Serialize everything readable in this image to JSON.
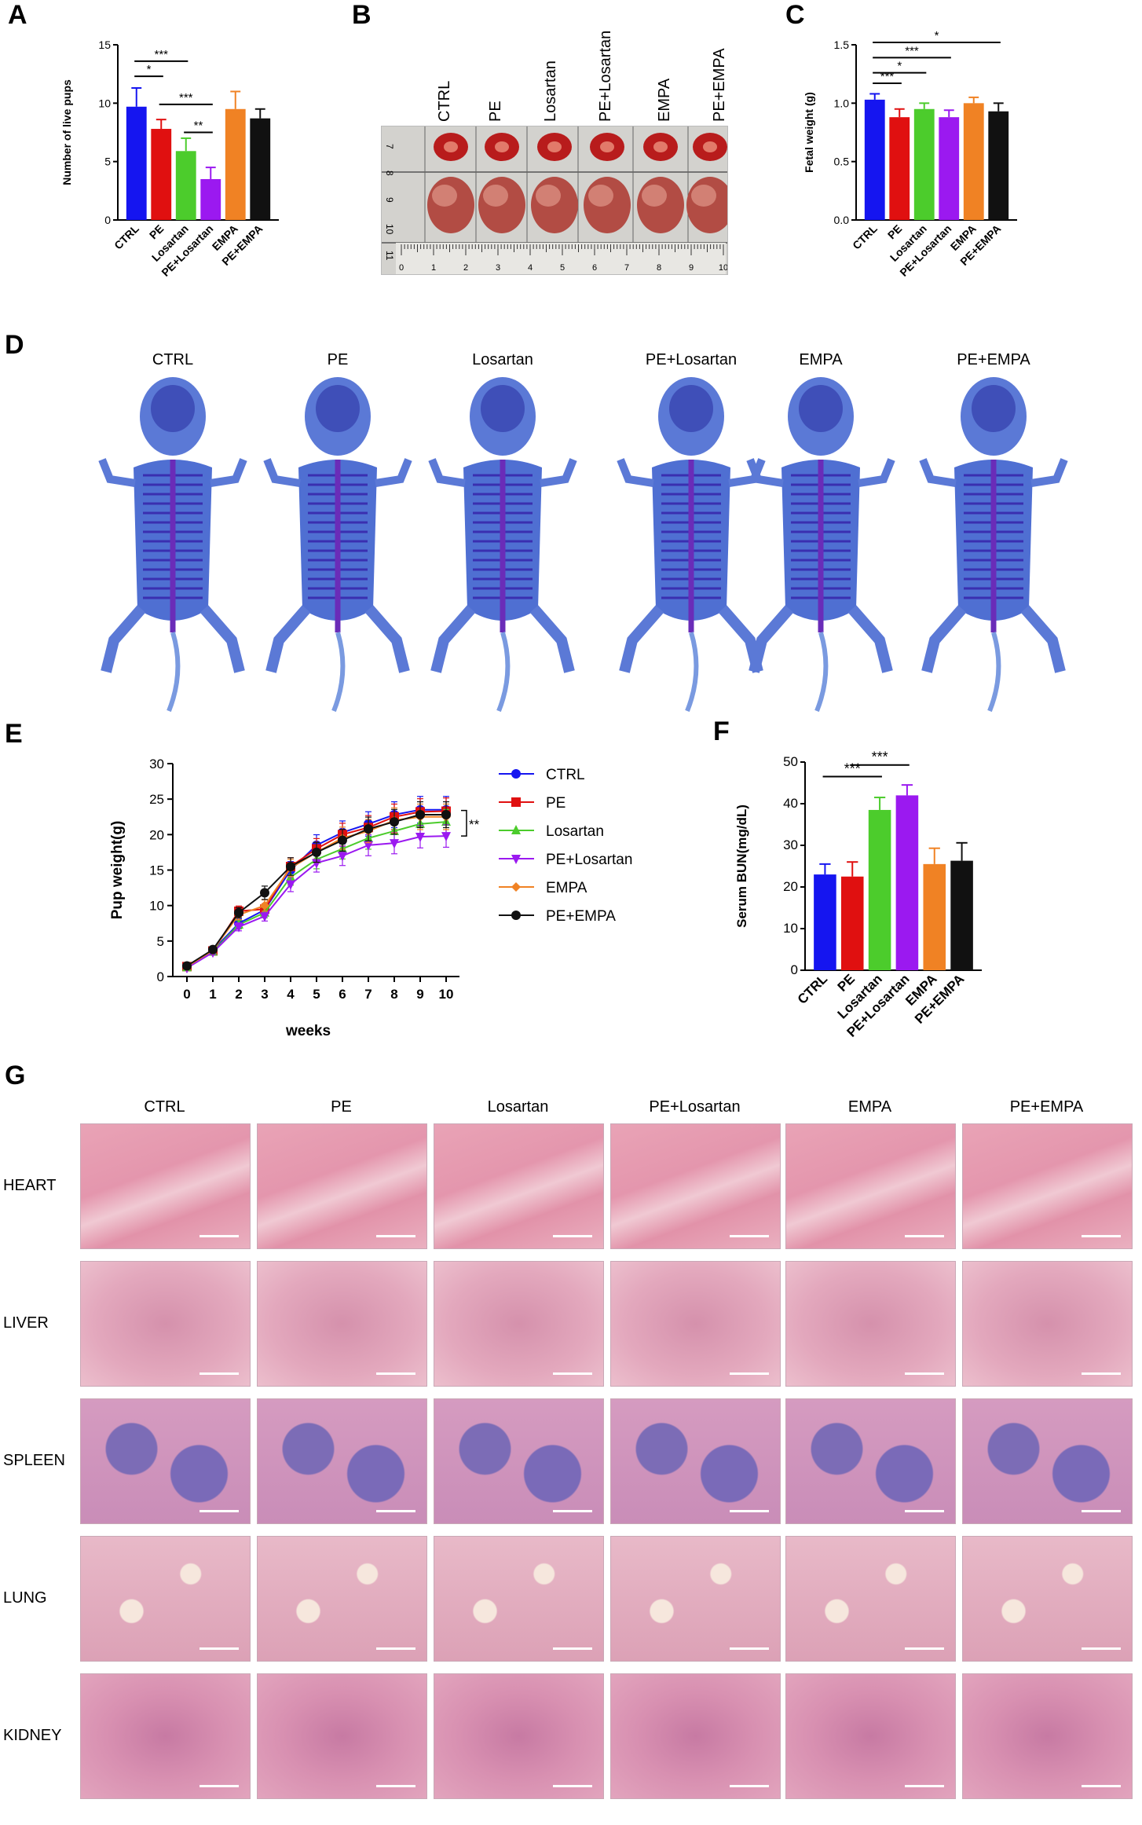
{
  "panels": {
    "A": "A",
    "B": "B",
    "C": "C",
    "D": "D",
    "E": "E",
    "F": "F",
    "G": "G"
  },
  "colors": {
    "CTRL": "#1515f0",
    "PE": "#e01010",
    "Losartan": "#4ccc2c",
    "PE+Losartan": "#9b19f0",
    "EMPA": "#f08224",
    "PE+EMPA": "#111111"
  },
  "groups": [
    "CTRL",
    "PE",
    "Losartan",
    "PE+Losartan",
    "EMPA",
    "PE+EMPA"
  ],
  "panel_b": {
    "headers": [
      "CTRL",
      "PE",
      "Losartan",
      "PE+Losartan",
      "EMPA",
      "PE+EMPA"
    ],
    "ruler_left": [
      "7",
      "8",
      "9",
      "10",
      "11"
    ],
    "ruler_bottom": [
      "0",
      "1",
      "2",
      "3",
      "4",
      "5",
      "6",
      "7",
      "8",
      "9",
      "10"
    ]
  },
  "panel_d": {
    "headers": [
      "CTRL",
      "PE",
      "Losartan",
      "PE+Losartan",
      "EMPA",
      "PE+EMPA"
    ]
  },
  "panel_g": {
    "columns": [
      "CTRL",
      "PE",
      "Losartan",
      "PE+Losartan",
      "EMPA",
      "PE+EMPA"
    ],
    "rows": [
      "HEART",
      "LIVER",
      "SPLEEN",
      "LUNG",
      "KIDNEY"
    ]
  },
  "chart_data": [
    {
      "panel": "A",
      "type": "bar",
      "ylabel": "Number of live pups",
      "categories": [
        "CTRL",
        "PE",
        "Losartan",
        "PE+Losartan",
        "EMPA",
        "PE+EMPA"
      ],
      "values": [
        9.7,
        7.8,
        5.9,
        3.5,
        9.5,
        8.7
      ],
      "errors": [
        1.6,
        0.8,
        1.1,
        1.0,
        1.5,
        0.8
      ],
      "ylim": [
        0,
        15
      ],
      "yticks": [
        "0",
        "5",
        "10",
        "15"
      ],
      "significance": [
        "***",
        "*",
        "***",
        "**"
      ]
    },
    {
      "panel": "C",
      "type": "bar",
      "ylabel": "Fetal weight (g)",
      "categories": [
        "CTRL",
        "PE",
        "Losartan",
        "PE+Losartan",
        "EMPA",
        "PE+EMPA"
      ],
      "values": [
        1.03,
        0.88,
        0.95,
        0.88,
        1.0,
        0.93
      ],
      "errors": [
        0.05,
        0.07,
        0.05,
        0.06,
        0.05,
        0.07
      ],
      "ylim": [
        0,
        1.5
      ],
      "yticks": [
        "0.0",
        "0.5",
        "1.0",
        "1.5"
      ],
      "significance": [
        "*",
        "***",
        "*",
        "***"
      ]
    },
    {
      "panel": "E",
      "type": "line",
      "ylabel": "Pup weight(g)",
      "xlabel": "weeks",
      "x": [
        0,
        1,
        2,
        3,
        4,
        5,
        6,
        7,
        8,
        9,
        10
      ],
      "ylim": [
        0,
        30
      ],
      "yticks": [
        "0",
        "5",
        "10",
        "15",
        "20",
        "25",
        "30"
      ],
      "series": [
        {
          "name": "CTRL",
          "values": [
            1.4,
            3.7,
            7.5,
            9.4,
            15.0,
            18.5,
            20.3,
            21.5,
            22.8,
            23.5,
            23.5
          ],
          "marker": "circle"
        },
        {
          "name": "PE",
          "values": [
            1.4,
            3.6,
            9.2,
            9.5,
            15.5,
            18.0,
            20.0,
            21.0,
            22.5,
            23.2,
            23.3
          ],
          "marker": "square"
        },
        {
          "name": "Losartan",
          "values": [
            1.3,
            3.5,
            7.3,
            9.0,
            14.0,
            16.5,
            18.0,
            19.5,
            20.5,
            21.5,
            21.8
          ],
          "marker": "triangle"
        },
        {
          "name": "PE+Losartan",
          "values": [
            1.2,
            3.4,
            7.0,
            8.5,
            13.0,
            16.0,
            17.0,
            18.5,
            18.8,
            19.7,
            19.8
          ],
          "marker": "triangle-down"
        },
        {
          "name": "EMPA",
          "values": [
            1.4,
            3.7,
            8.7,
            10.0,
            15.3,
            17.5,
            19.5,
            20.5,
            22.0,
            22.5,
            22.5
          ],
          "marker": "diamond"
        },
        {
          "name": "PE+EMPA",
          "values": [
            1.5,
            3.8,
            9.0,
            11.8,
            15.5,
            17.5,
            19.2,
            20.8,
            21.8,
            22.8,
            22.8
          ],
          "marker": "circle"
        }
      ],
      "significance": "**"
    },
    {
      "panel": "F",
      "type": "bar",
      "ylabel": "Serum BUN(mg/dL)",
      "categories": [
        "CTRL",
        "PE",
        "Losartan",
        "PE+Losartan",
        "EMPA",
        "PE+EMPA"
      ],
      "values": [
        23,
        22.5,
        38.5,
        42,
        25.5,
        26.3
      ],
      "errors": [
        2.5,
        3.5,
        3.0,
        2.5,
        3.8,
        4.3
      ],
      "ylim": [
        0,
        50
      ],
      "yticks": [
        "0",
        "10",
        "20",
        "30",
        "40",
        "50"
      ],
      "significance": [
        "***",
        "***"
      ]
    }
  ]
}
